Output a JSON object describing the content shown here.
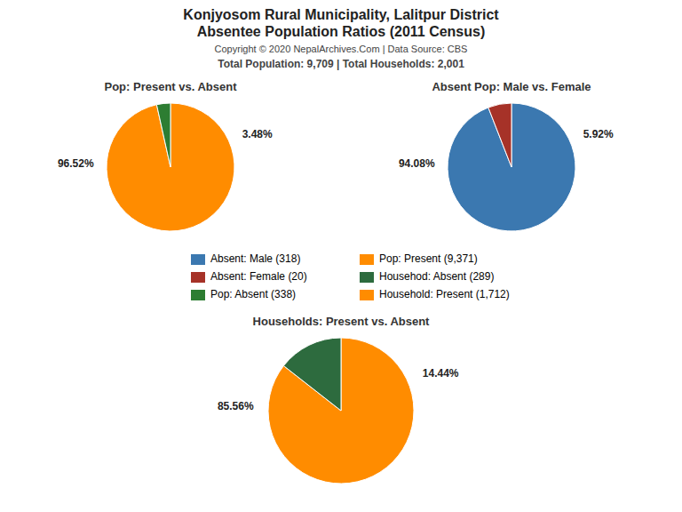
{
  "title": "Konjyosom Rural Municipality, Lalitpur District",
  "subtitle": "Absentee Population Ratios (2011 Census)",
  "annotations": [
    "Copyright © 2020 NepalArchives.Com | Data Source: CBS",
    "Total Population: 9,709 | Total Households: 2,001"
  ],
  "chart_data": [
    {
      "type": "pie",
      "title": "Pop: Present vs. Absent",
      "categories": [
        "Pop: Present (9,371)",
        "Pop: Absent (338)"
      ],
      "values": [
        96.52,
        3.48
      ],
      "value_labels": [
        "96.52%",
        "3.48%"
      ],
      "colors": [
        "#FF8C00",
        "#2D7D32"
      ],
      "data_labels": true
    },
    {
      "type": "pie",
      "title": "Absent Pop: Male vs. Female",
      "categories": [
        "Absent: Male (318)",
        "Absent: Female (20)"
      ],
      "values": [
        94.08,
        5.92
      ],
      "value_labels": [
        "94.08%",
        "5.92%"
      ],
      "colors": [
        "#3B78B0",
        "#A63228"
      ],
      "data_labels": true
    },
    {
      "type": "pie",
      "title": "Households: Present vs. Absent",
      "categories": [
        "Household: Present (1,712)",
        "Househod: Absent (289)"
      ],
      "values": [
        85.56,
        14.44
      ],
      "value_labels": [
        "85.56%",
        "14.44%"
      ],
      "colors": [
        "#FF8C00",
        "#2D6B3E"
      ],
      "data_labels": true
    }
  ]
}
